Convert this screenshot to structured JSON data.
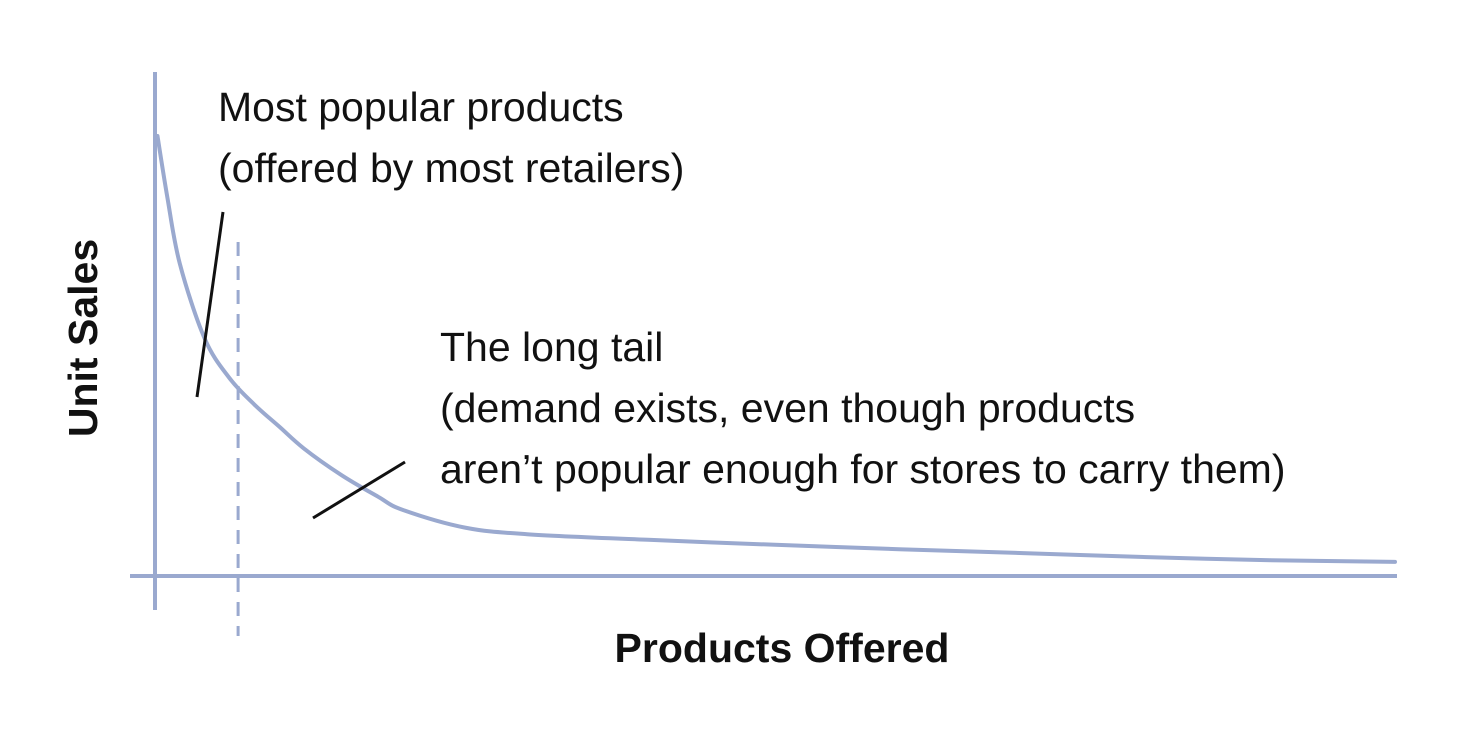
{
  "chart_data": {
    "type": "line",
    "title": "",
    "xlabel": "Products Offered",
    "ylabel": "Unit Sales",
    "grid": false,
    "legend": "none",
    "axis_color": "#9aa9cf",
    "curve_color": "#9aa9cf",
    "series": [
      {
        "x": [
          0.2,
          1,
          2,
          4,
          6,
          8,
          10,
          12,
          15,
          18,
          20,
          25,
          30,
          40,
          50,
          60,
          70,
          80,
          90,
          100
        ],
        "values": [
          100,
          86,
          71,
          54,
          45,
          39,
          34,
          29,
          23,
          18,
          15,
          11,
          9.5,
          8.2,
          7.1,
          6.1,
          5.2,
          4.3,
          3.6,
          3.2
        ]
      }
    ],
    "xlim": [
      0,
      100
    ],
    "ylim": [
      0,
      110
    ],
    "head_cutoff_x": 6.7,
    "annotations": [
      {
        "id": "popular",
        "lines": [
          "Most popular products",
          "(offered by most retailers)"
        ]
      },
      {
        "id": "long-tail",
        "lines": [
          "The long tail",
          "(demand exists, even though products",
          "aren’t popular enough for stores to carry them)"
        ]
      }
    ]
  }
}
